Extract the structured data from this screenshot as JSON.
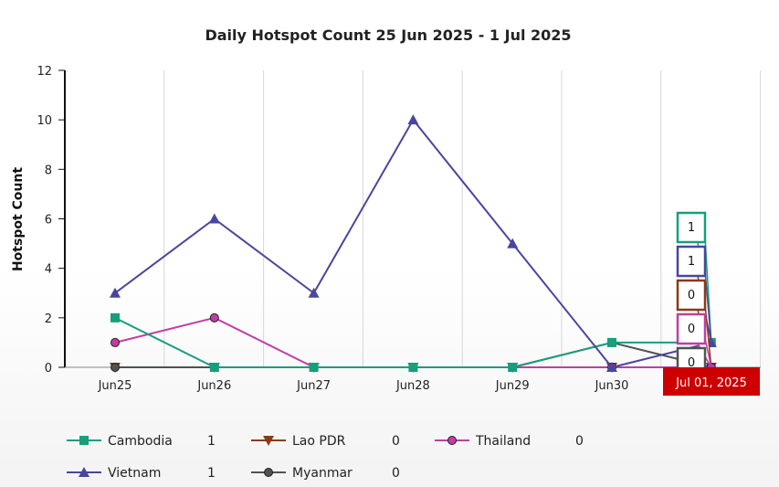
{
  "chart_data": {
    "type": "line",
    "title": "Daily Hotspot Count 25 Jun 2025 - 1 Jul 2025",
    "ylabel": "Hotspot Count",
    "xlabel": "",
    "categories": [
      "Jun25",
      "Jun26",
      "Jun27",
      "Jun28",
      "Jun29",
      "Jun30",
      "Jul"
    ],
    "ylim": [
      0,
      12
    ],
    "yticks": [
      0,
      2,
      4,
      6,
      8,
      10,
      12
    ],
    "grid": "vertical",
    "legend_position": "bottom",
    "series": [
      {
        "name": "Cambodia",
        "color": "#179e7c",
        "marker": "square",
        "values": [
          2,
          0,
          0,
          0,
          0,
          1,
          1
        ],
        "latest": "1"
      },
      {
        "name": "Lao PDR",
        "color": "#8b3a12",
        "marker": "triangle-down",
        "values": [
          0,
          0,
          0,
          0,
          0,
          0,
          0
        ],
        "latest": "0"
      },
      {
        "name": "Thailand",
        "color": "#c03ea3",
        "marker": "circle",
        "values": [
          1,
          2,
          0,
          0,
          0,
          0,
          0
        ],
        "latest": "0"
      },
      {
        "name": "Vietnam",
        "color": "#48469e",
        "marker": "triangle-up",
        "values": [
          3,
          6,
          3,
          10,
          5,
          0,
          1
        ],
        "latest": "1"
      },
      {
        "name": "Myanmar",
        "color": "#4f5352",
        "marker": "circle",
        "values": [
          0,
          0,
          0,
          0,
          0,
          1,
          0
        ],
        "latest": "0"
      }
    ],
    "tooltip": {
      "date_label": "Jul 01, 2025",
      "date_color": "#cc0000",
      "order": [
        "Cambodia",
        "Vietnam",
        "Lao PDR",
        "Thailand",
        "Myanmar"
      ]
    }
  }
}
